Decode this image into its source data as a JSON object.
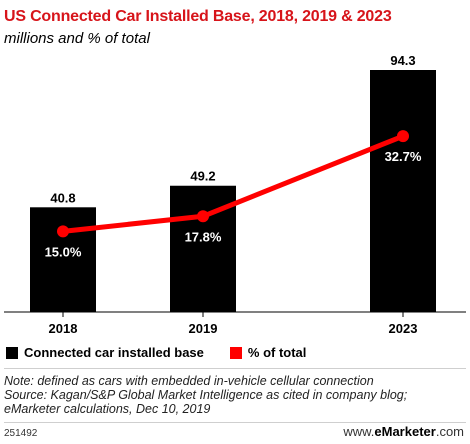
{
  "title": "US Connected Car Installed Base, 2018, 2019 & 2023",
  "subtitle": "millions and % of total",
  "legend": {
    "bar_label": "Connected car installed base",
    "line_label": "% of total",
    "bar_color": "#000000",
    "line_color": "#ff0000"
  },
  "notes": [
    "Note: defined as cars with embedded in-vehicle cellular connection",
    "Source: Kagan/S&P Global Market Intelligence as cited in company blog;",
    "eMarketer calculations, Dec 10, 2019"
  ],
  "footer": {
    "chart_id": "251492",
    "brand_prefix": "www.",
    "brand_name": "eMarketer",
    "brand_suffix": ".com"
  },
  "chart_data": {
    "type": "bar",
    "categories": [
      "2018",
      "2019",
      "2023"
    ],
    "series": [
      {
        "name": "Connected car installed base",
        "values": [
          40.8,
          49.2,
          94.3
        ],
        "labels": [
          "40.8",
          "49.2",
          "94.3"
        ]
      },
      {
        "name": "% of total",
        "type": "line",
        "values": [
          15.0,
          17.8,
          32.7
        ],
        "labels": [
          "15.0%",
          "17.8%",
          "32.7%"
        ]
      }
    ],
    "grid": false
  }
}
